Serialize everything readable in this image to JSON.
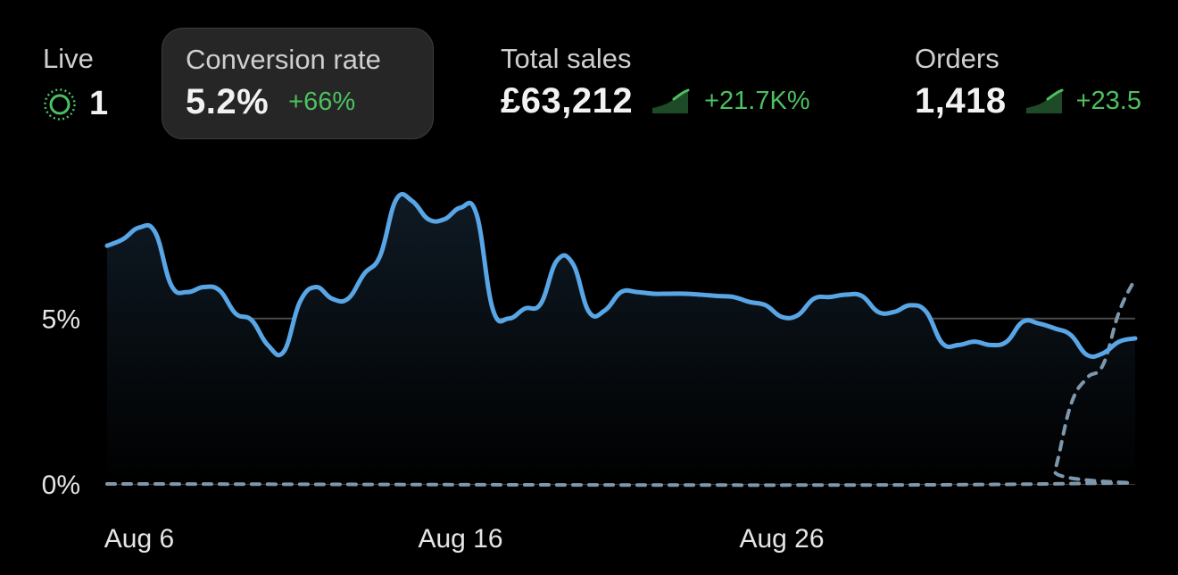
{
  "metrics": {
    "live": {
      "label": "Live",
      "value": "1",
      "icon": "live-pulse-icon",
      "color": "#4cc15f"
    },
    "conversion_rate": {
      "label": "Conversion rate",
      "value": "5.2%",
      "change": "+66%",
      "selected": true
    },
    "total_sales": {
      "label": "Total sales",
      "value": "£63,212",
      "change": "+21.7K%",
      "icon": "trend-up-sparkline-icon"
    },
    "orders": {
      "label": "Orders",
      "value": "1,418",
      "change": "+23.5",
      "icon": "trend-up-sparkline-icon"
    }
  },
  "colors": {
    "accent": "#58a6e6",
    "positive": "#4cc15f",
    "comparison": "#7d98ad"
  },
  "chart_data": {
    "type": "line",
    "x_tick_labels": [
      "Aug 6",
      "Aug 16",
      "Aug 26"
    ],
    "y_tick_labels": [
      "0%",
      "5%"
    ],
    "y_ticks": [
      0,
      5
    ],
    "ylim": [
      0,
      9.5
    ],
    "xlim": [
      5,
      37
    ],
    "x_ticks": [
      6,
      16,
      26
    ],
    "grid": true,
    "series": [
      {
        "style": "solid",
        "area_fill": true,
        "points": [
          [
            5,
            7.2
          ],
          [
            5.5,
            7.4
          ],
          [
            6,
            7.75
          ],
          [
            6.5,
            7.6
          ],
          [
            7,
            6.0
          ],
          [
            7.5,
            5.8
          ],
          [
            8,
            5.95
          ],
          [
            8.5,
            5.85
          ],
          [
            9,
            5.15
          ],
          [
            9.5,
            4.95
          ],
          [
            10,
            4.2
          ],
          [
            10.5,
            4.0
          ],
          [
            11,
            5.5
          ],
          [
            11.5,
            5.95
          ],
          [
            12,
            5.6
          ],
          [
            12.5,
            5.6
          ],
          [
            13,
            6.35
          ],
          [
            13.5,
            6.9
          ],
          [
            14,
            8.6
          ],
          [
            14.5,
            8.55
          ],
          [
            15,
            8.0
          ],
          [
            15.5,
            8.0
          ],
          [
            16,
            8.35
          ],
          [
            16.5,
            8.15
          ],
          [
            17,
            5.3
          ],
          [
            17.5,
            5.0
          ],
          [
            18,
            5.3
          ],
          [
            18.5,
            5.45
          ],
          [
            19,
            6.75
          ],
          [
            19.5,
            6.65
          ],
          [
            20,
            5.2
          ],
          [
            20.5,
            5.25
          ],
          [
            21,
            5.8
          ],
          [
            21.5,
            5.8
          ],
          [
            22,
            5.75
          ],
          [
            22.5,
            5.75
          ],
          [
            23,
            5.75
          ],
          [
            23.5,
            5.72
          ],
          [
            24,
            5.68
          ],
          [
            24.5,
            5.65
          ],
          [
            25,
            5.5
          ],
          [
            25.5,
            5.4
          ],
          [
            26,
            5.05
          ],
          [
            26.5,
            5.1
          ],
          [
            27,
            5.6
          ],
          [
            27.5,
            5.65
          ],
          [
            28,
            5.72
          ],
          [
            28.5,
            5.68
          ],
          [
            29,
            5.2
          ],
          [
            29.5,
            5.2
          ],
          [
            30,
            5.4
          ],
          [
            30.5,
            5.2
          ],
          [
            31,
            4.25
          ],
          [
            31.5,
            4.2
          ],
          [
            32,
            4.3
          ],
          [
            32.5,
            4.2
          ],
          [
            33,
            4.3
          ],
          [
            33.5,
            4.9
          ],
          [
            34,
            4.85
          ],
          [
            34.5,
            4.7
          ],
          [
            35,
            4.5
          ],
          [
            35.5,
            3.9
          ],
          [
            36,
            3.95
          ],
          [
            36.5,
            4.3
          ],
          [
            37,
            4.4
          ]
        ]
      },
      {
        "style": "dashed",
        "area_fill": false,
        "points": [
          [
            5,
            0
          ],
          [
            34.2,
            0
          ],
          [
            34.5,
            0.4
          ],
          [
            35,
            2.4
          ],
          [
            35.5,
            3.2
          ],
          [
            36,
            3.6
          ],
          [
            36.5,
            5.2
          ],
          [
            37,
            6.2
          ]
        ]
      }
    ]
  }
}
